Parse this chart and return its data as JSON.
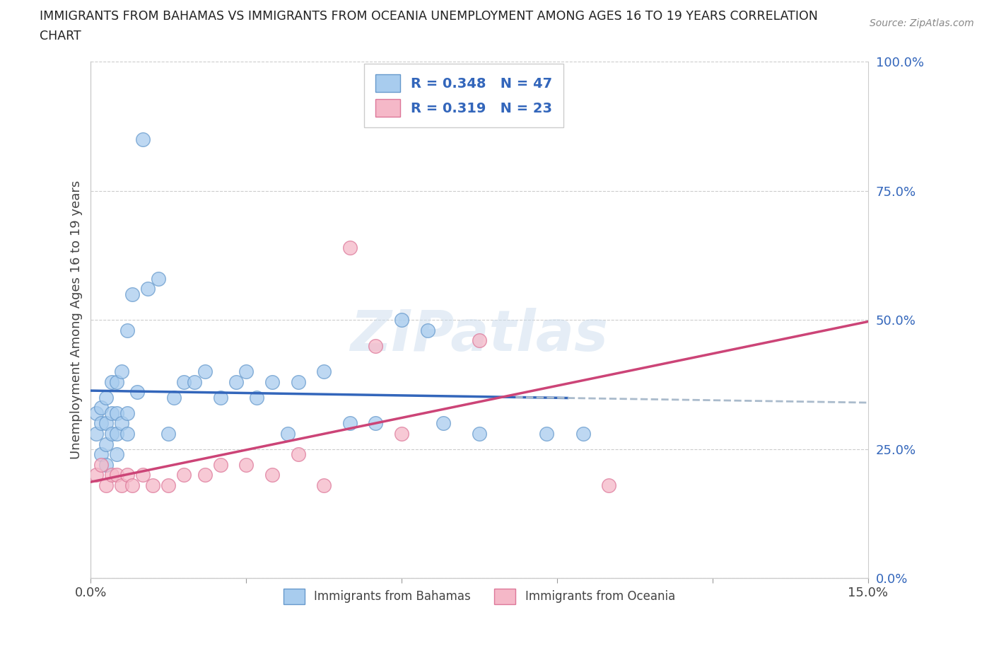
{
  "title_line1": "IMMIGRANTS FROM BAHAMAS VS IMMIGRANTS FROM OCEANIA UNEMPLOYMENT AMONG AGES 16 TO 19 YEARS CORRELATION",
  "title_line2": "CHART",
  "source_text": "Source: ZipAtlas.com",
  "ylabel": "Unemployment Among Ages 16 to 19 years",
  "xmin": 0.0,
  "xmax": 0.15,
  "ymin": 0.0,
  "ymax": 1.0,
  "ytick_vals": [
    0.0,
    0.25,
    0.5,
    0.75,
    1.0
  ],
  "ytick_labels": [
    "0.0%",
    "25.0%",
    "50.0%",
    "75.0%",
    "100.0%"
  ],
  "bahamas_color": "#a8ccee",
  "bahamas_edge_color": "#6699cc",
  "oceania_color": "#f5b8c8",
  "oceania_edge_color": "#dd7799",
  "trend_bahamas_color": "#3366bb",
  "trend_oceania_color": "#cc4477",
  "trend_dashed_color": "#aabbcc",
  "R_bahamas": 0.348,
  "N_bahamas": 47,
  "R_oceania": 0.319,
  "N_oceania": 23,
  "legend_label_bahamas": "Immigrants from Bahamas",
  "legend_label_oceania": "Immigrants from Oceania",
  "watermark": "ZIPatlas",
  "blue_text_color": "#3366bb",
  "bahamas_x": [
    0.001,
    0.001,
    0.002,
    0.002,
    0.002,
    0.003,
    0.003,
    0.003,
    0.003,
    0.004,
    0.004,
    0.004,
    0.005,
    0.005,
    0.005,
    0.005,
    0.006,
    0.006,
    0.007,
    0.007,
    0.007,
    0.008,
    0.009,
    0.01,
    0.011,
    0.013,
    0.015,
    0.016,
    0.018,
    0.02,
    0.022,
    0.025,
    0.028,
    0.03,
    0.032,
    0.035,
    0.038,
    0.04,
    0.045,
    0.05,
    0.055,
    0.06,
    0.065,
    0.068,
    0.075,
    0.088,
    0.095
  ],
  "bahamas_y": [
    0.28,
    0.32,
    0.24,
    0.3,
    0.33,
    0.22,
    0.26,
    0.3,
    0.35,
    0.28,
    0.32,
    0.38,
    0.24,
    0.28,
    0.32,
    0.38,
    0.3,
    0.4,
    0.28,
    0.32,
    0.48,
    0.55,
    0.36,
    0.85,
    0.56,
    0.58,
    0.28,
    0.35,
    0.38,
    0.38,
    0.4,
    0.35,
    0.38,
    0.4,
    0.35,
    0.38,
    0.28,
    0.38,
    0.4,
    0.3,
    0.3,
    0.5,
    0.48,
    0.3,
    0.28,
    0.28,
    0.28
  ],
  "oceania_x": [
    0.001,
    0.002,
    0.003,
    0.004,
    0.005,
    0.006,
    0.007,
    0.008,
    0.01,
    0.012,
    0.015,
    0.018,
    0.022,
    0.025,
    0.03,
    0.035,
    0.04,
    0.045,
    0.05,
    0.055,
    0.06,
    0.075,
    0.1
  ],
  "oceania_y": [
    0.2,
    0.22,
    0.18,
    0.2,
    0.2,
    0.18,
    0.2,
    0.18,
    0.2,
    0.18,
    0.18,
    0.2,
    0.2,
    0.22,
    0.22,
    0.2,
    0.24,
    0.18,
    0.64,
    0.45,
    0.28,
    0.46,
    0.18
  ]
}
